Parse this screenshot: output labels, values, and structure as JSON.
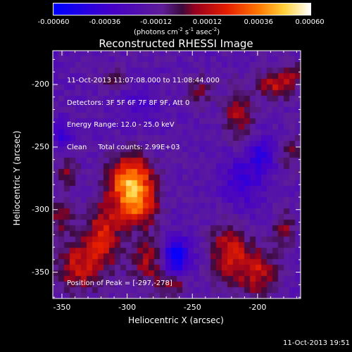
{
  "colorbar": {
    "ticks": [
      "-0.00060",
      "-0.00036",
      "-0.00012",
      "0.00012",
      "0.00036",
      "0.00060"
    ],
    "label": "(photons cm",
    "label_sup1": "-2",
    "label_mid": " s",
    "label_sup2": "-1",
    "label_end": " asec",
    "label_sup3": "-2",
    "label_close": ")",
    "colors": {
      "low": "#0000ff",
      "mid": "#000000",
      "high": "#ffffff"
    }
  },
  "title": "Reconstructed RHESSI Image",
  "overlay": {
    "line1": "11-Oct-2013 11:07:08.000 to 11:08:44.000",
    "line2": "Detectors: 3F 5F 6F 7F 8F 9F, Att 0",
    "line3": "Energy Range: 12.0 - 25.0 keV",
    "line4": "Clean     Total counts: 2.99E+03",
    "peak": "Position of Peak = [-297,-278]"
  },
  "footer": {
    "timestamp": "11-Oct-2013 19:51"
  },
  "chart_data": {
    "type": "heatmap",
    "title": "Reconstructed RHESSI Image",
    "xlabel": "Heliocentric X (arcsec)",
    "ylabel": "Heliocentric Y (arcsec)",
    "xlim": [
      -357,
      -167
    ],
    "ylim": [
      -371,
      -173
    ],
    "x_ticks": [
      -350,
      -300,
      -250,
      -200
    ],
    "y_ticks": [
      -200,
      -250,
      -300,
      -350
    ],
    "x_tick_labels": [
      "-350",
      "-300",
      "-250",
      "-200"
    ],
    "y_tick_labels": [
      "-200",
      "-250",
      "-300",
      "-350"
    ],
    "color_range": [
      -0.0006,
      0.0006
    ],
    "peak_position": [
      -297,
      -278
    ],
    "sources": [
      {
        "x": -297,
        "y": -278,
        "sx": 12,
        "sy": 14,
        "amp": 1.0
      },
      {
        "x": -292,
        "y": -300,
        "sx": 10,
        "sy": 10,
        "amp": 0.55
      },
      {
        "x": -318,
        "y": -320,
        "sx": 10,
        "sy": 18,
        "amp": 0.55
      },
      {
        "x": -338,
        "y": -345,
        "sx": 12,
        "sy": 14,
        "amp": 0.5
      },
      {
        "x": -350,
        "y": -305,
        "sx": 6,
        "sy": 10,
        "amp": 0.35
      },
      {
        "x": -345,
        "y": -270,
        "sx": 6,
        "sy": 8,
        "amp": 0.35
      },
      {
        "x": -283,
        "y": -340,
        "sx": 10,
        "sy": 14,
        "amp": 0.45
      },
      {
        "x": -265,
        "y": -360,
        "sx": 8,
        "sy": 6,
        "amp": 0.35
      },
      {
        "x": -222,
        "y": -335,
        "sx": 10,
        "sy": 16,
        "amp": 0.55
      },
      {
        "x": -200,
        "y": -350,
        "sx": 10,
        "sy": 14,
        "amp": 0.5
      },
      {
        "x": -180,
        "y": -315,
        "sx": 6,
        "sy": 10,
        "amp": 0.35
      },
      {
        "x": -185,
        "y": -200,
        "sx": 10,
        "sy": 8,
        "amp": 0.5
      },
      {
        "x": -170,
        "y": -190,
        "sx": 6,
        "sy": 6,
        "amp": 0.35
      },
      {
        "x": -215,
        "y": -225,
        "sx": 8,
        "sy": 16,
        "amp": 0.4
      },
      {
        "x": -175,
        "y": -255,
        "sx": 6,
        "sy": 10,
        "amp": 0.3
      },
      {
        "x": -245,
        "y": -205,
        "sx": 7,
        "sy": 8,
        "amp": 0.3
      },
      {
        "x": -310,
        "y": -195,
        "sx": 8,
        "sy": 6,
        "amp": 0.25
      },
      {
        "x": -263,
        "y": -337,
        "sx": 8,
        "sy": 10,
        "amp": -0.75
      },
      {
        "x": -210,
        "y": -275,
        "sx": 12,
        "sy": 16,
        "amp": -0.35
      },
      {
        "x": -195,
        "y": -255,
        "sx": 6,
        "sy": 8,
        "amp": -0.4
      },
      {
        "x": -350,
        "y": -240,
        "sx": 6,
        "sy": 8,
        "amp": -0.35
      },
      {
        "x": -290,
        "y": -215,
        "sx": 10,
        "sy": 10,
        "amp": -0.25
      }
    ]
  }
}
